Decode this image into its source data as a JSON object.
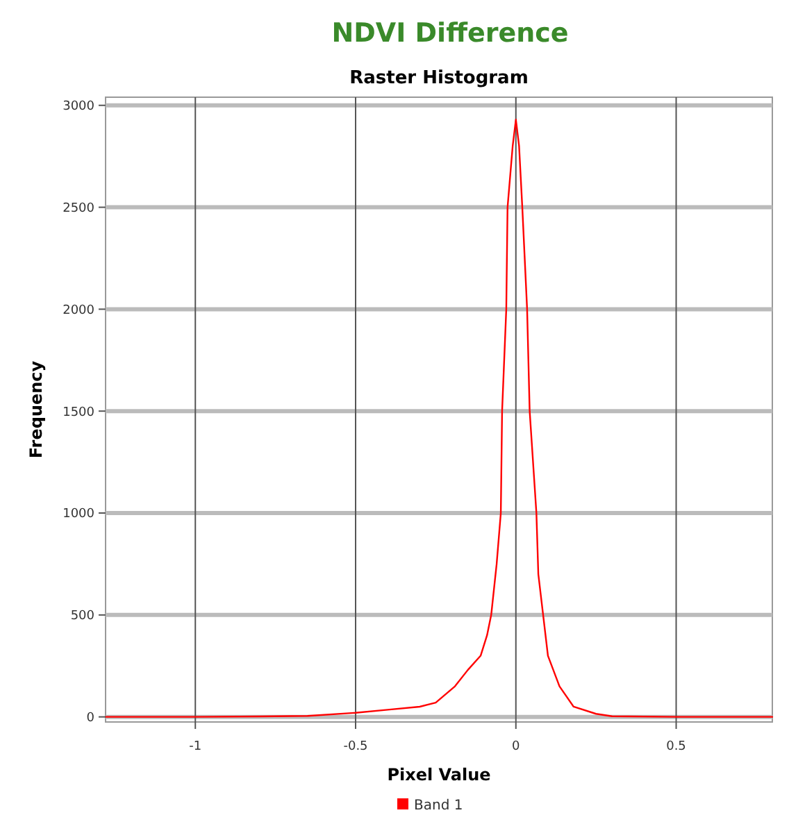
{
  "chart_data": {
    "type": "line",
    "title": "NDVI Difference",
    "subtitle": "Raster Histogram",
    "xlabel": "Pixel Value",
    "ylabel": "Frequency",
    "xlim": [
      -1.28,
      0.8
    ],
    "ylim": [
      -25,
      3040
    ],
    "xticks": [
      -1,
      -0.5,
      0,
      0.5
    ],
    "yticks": [
      0,
      500,
      1000,
      1500,
      2000,
      2500,
      3000
    ],
    "grid": true,
    "legend": "bottom",
    "series": [
      {
        "name": "Band 1",
        "color": "#ff0000",
        "x": [
          -1.28,
          -1.0,
          -0.8,
          -0.65,
          -0.5,
          -0.4,
          -0.3,
          -0.25,
          -0.19,
          -0.15,
          -0.11,
          -0.09,
          -0.077,
          -0.06,
          -0.047,
          -0.043,
          -0.03,
          -0.026,
          -0.01,
          0,
          0.01,
          0.02,
          0.035,
          0.043,
          0.064,
          0.07,
          0.085,
          0.1,
          0.136,
          0.18,
          0.25,
          0.3,
          0.5,
          0.8
        ],
        "values": [
          0,
          0,
          2,
          5,
          20,
          35,
          50,
          70,
          150,
          230,
          300,
          400,
          500,
          750,
          1000,
          1500,
          2000,
          2500,
          2800,
          2930,
          2800,
          2500,
          2000,
          1500,
          1000,
          700,
          500,
          300,
          150,
          50,
          15,
          3,
          0,
          0
        ]
      }
    ]
  }
}
